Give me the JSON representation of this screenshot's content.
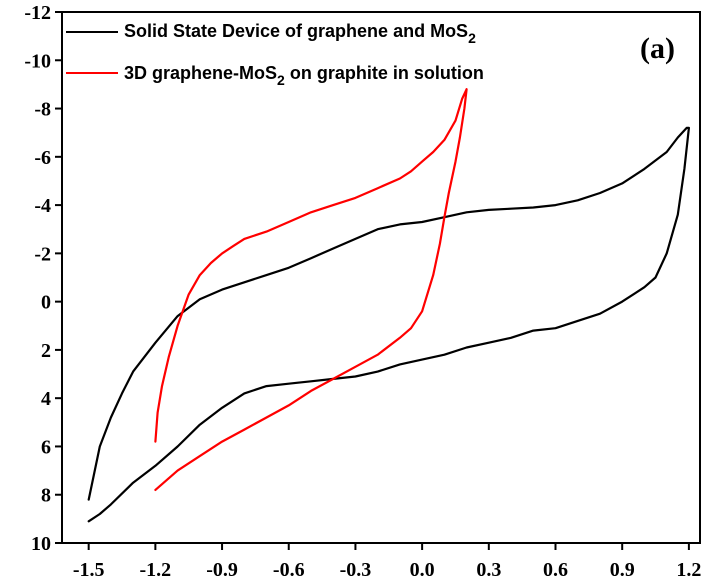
{
  "chart_data": {
    "type": "line",
    "title": "",
    "xlabel": "",
    "ylabel": "",
    "panel_label": "(a)",
    "xlim": [
      -1.62,
      1.25
    ],
    "ylim": [
      -12,
      10
    ],
    "y_inverted": true,
    "grid": false,
    "legend_position": "top-left",
    "x_ticks": [
      -1.5,
      -1.2,
      -0.9,
      -0.6,
      -0.3,
      0.0,
      0.3,
      0.6,
      0.9,
      1.2
    ],
    "x_tick_labels": [
      "-1.5",
      "-1.2",
      "-0.9",
      "-0.6",
      "-0.3",
      "0.0",
      "0.3",
      "0.6",
      "0.9",
      "1.2"
    ],
    "y_ticks": [
      -12,
      -10,
      -8,
      -6,
      -4,
      -2,
      0,
      2,
      4,
      6,
      8,
      10
    ],
    "y_tick_labels": [
      "-12",
      "-10",
      "-8",
      "-6",
      "-4",
      "-2",
      "0",
      "2",
      "4",
      "6",
      "8",
      "10"
    ],
    "series": [
      {
        "name_main": "Solid State Device of graphene and MoS",
        "name_sub": "2",
        "color": "#000000",
        "x": [
          -1.5,
          -1.45,
          -1.4,
          -1.35,
          -1.3,
          -1.2,
          -1.1,
          -1.0,
          -0.9,
          -0.8,
          -0.7,
          -0.6,
          -0.5,
          -0.4,
          -0.3,
          -0.2,
          -0.1,
          0.0,
          0.1,
          0.2,
          0.3,
          0.4,
          0.5,
          0.6,
          0.7,
          0.8,
          0.9,
          1.0,
          1.1,
          1.15,
          1.19,
          1.2,
          1.18,
          1.15,
          1.1,
          1.05,
          1.0,
          0.9,
          0.8,
          0.7,
          0.6,
          0.5,
          0.4,
          0.3,
          0.2,
          0.1,
          0.0,
          -0.1,
          -0.2,
          -0.3,
          -0.4,
          -0.5,
          -0.6,
          -0.7,
          -0.8,
          -0.9,
          -1.0,
          -1.1,
          -1.2,
          -1.3,
          -1.4,
          -1.45,
          -1.5
        ],
        "y": [
          8.2,
          6.0,
          4.8,
          3.8,
          2.9,
          1.7,
          0.6,
          -0.1,
          -0.5,
          -0.8,
          -1.1,
          -1.4,
          -1.8,
          -2.2,
          -2.6,
          -3.0,
          -3.2,
          -3.3,
          -3.5,
          -3.7,
          -3.8,
          -3.85,
          -3.9,
          -4.0,
          -4.2,
          -4.5,
          -4.9,
          -5.5,
          -6.2,
          -6.8,
          -7.2,
          -7.2,
          -5.5,
          -3.6,
          -2.0,
          -1.0,
          -0.6,
          0.0,
          0.5,
          0.8,
          1.1,
          1.2,
          1.5,
          1.7,
          1.9,
          2.2,
          2.4,
          2.6,
          2.9,
          3.1,
          3.2,
          3.3,
          3.4,
          3.5,
          3.8,
          4.4,
          5.1,
          6.0,
          6.8,
          7.5,
          8.4,
          8.8,
          9.1
        ]
      },
      {
        "name_main": "3D graphene-MoS",
        "name_sub": "2",
        "name_tail": " on graphite in solution",
        "color": "#ff0000",
        "x": [
          -1.2,
          -1.19,
          -1.17,
          -1.14,
          -1.1,
          -1.05,
          -1.0,
          -0.95,
          -0.9,
          -0.85,
          -0.8,
          -0.7,
          -0.6,
          -0.5,
          -0.4,
          -0.3,
          -0.2,
          -0.1,
          -0.05,
          0.0,
          0.05,
          0.1,
          0.15,
          0.18,
          0.2,
          0.19,
          0.17,
          0.15,
          0.12,
          0.1,
          0.08,
          0.05,
          0.0,
          -0.05,
          -0.1,
          -0.2,
          -0.3,
          -0.4,
          -0.5,
          -0.6,
          -0.7,
          -0.8,
          -0.9,
          -1.0,
          -1.1,
          -1.2
        ],
        "y": [
          5.8,
          4.6,
          3.5,
          2.3,
          1.0,
          -0.3,
          -1.1,
          -1.6,
          -2.0,
          -2.3,
          -2.6,
          -2.9,
          -3.3,
          -3.7,
          -4.0,
          -4.3,
          -4.7,
          -5.1,
          -5.4,
          -5.8,
          -6.2,
          -6.7,
          -7.5,
          -8.4,
          -8.8,
          -8.0,
          -6.8,
          -5.8,
          -4.5,
          -3.5,
          -2.4,
          -1.1,
          0.4,
          1.1,
          1.5,
          2.2,
          2.7,
          3.2,
          3.7,
          4.3,
          4.8,
          5.3,
          5.8,
          6.4,
          7.0,
          7.8
        ]
      }
    ]
  }
}
